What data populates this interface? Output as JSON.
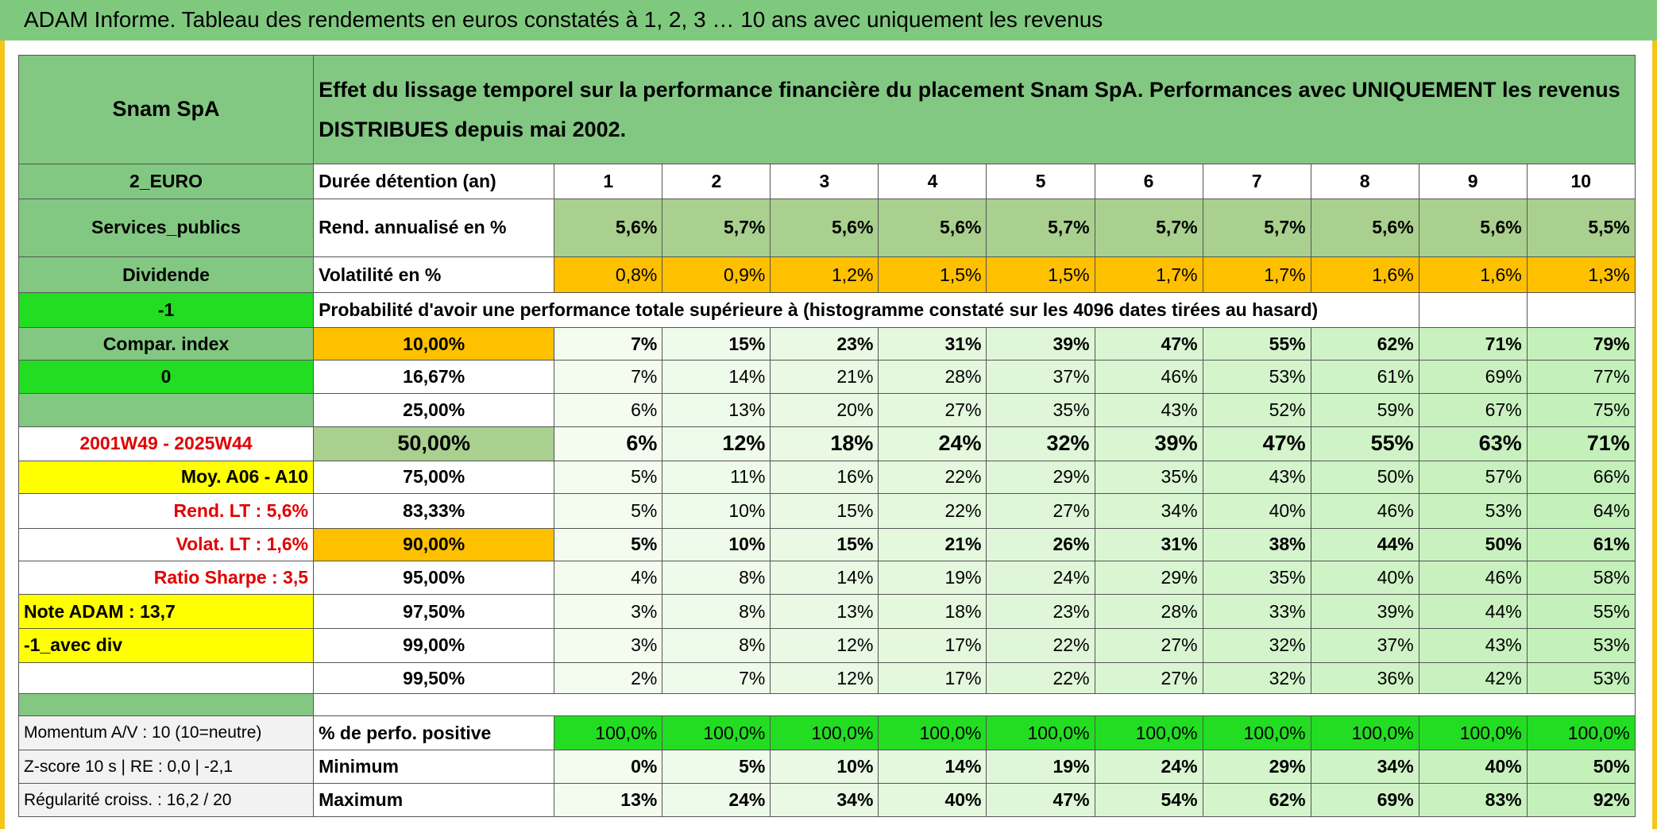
{
  "header": {
    "title": "ADAM Informe. Tableau des rendements en euros constatés à 1, 2, 3 … 10 ans avec uniquement les revenus"
  },
  "table": {
    "name": "Snam SpA",
    "description": "Effet du lissage temporel sur la performance financière du placement Snam SpA. Performances avec UNIQUEMENT les revenus DISTRIBUES depuis mai 2002.",
    "rows": [
      {
        "side": "2_EURO",
        "label": "Durée détention (an)",
        "cells": [
          "1",
          "2",
          "3",
          "4",
          "5",
          "6",
          "7",
          "8",
          "9",
          "10"
        ]
      },
      {
        "side": "Services_publics",
        "label": "Rend. annualisé en %",
        "cells": [
          "5,6%",
          "5,7%",
          "5,6%",
          "5,6%",
          "5,7%",
          "5,7%",
          "5,7%",
          "5,6%",
          "5,6%",
          "5,5%"
        ]
      },
      {
        "side": "Dividende",
        "label": "Volatilité en %",
        "cells": [
          "0,8%",
          "0,9%",
          "1,2%",
          "1,5%",
          "1,5%",
          "1,7%",
          "1,7%",
          "1,6%",
          "1,6%",
          "1,3%"
        ]
      },
      {
        "side": "-1",
        "note": "Probabilité d'avoir une performance totale supérieure à (histogramme constaté sur les 4096 dates tirées au hasard)"
      },
      {
        "side": "Compar. index",
        "label": "10,00%",
        "cells": [
          "7%",
          "15%",
          "23%",
          "31%",
          "39%",
          "47%",
          "55%",
          "62%",
          "71%",
          "79%"
        ]
      },
      {
        "side": "0",
        "label": "16,67%",
        "cells": [
          "7%",
          "14%",
          "21%",
          "28%",
          "37%",
          "46%",
          "53%",
          "61%",
          "69%",
          "77%"
        ]
      },
      {
        "label": "25,00%",
        "cells": [
          "6%",
          "13%",
          "20%",
          "27%",
          "35%",
          "43%",
          "52%",
          "59%",
          "67%",
          "75%"
        ]
      },
      {
        "side": "2001W49 - 2025W44",
        "label": "50,00%",
        "cells": [
          "6%",
          "12%",
          "18%",
          "24%",
          "32%",
          "39%",
          "47%",
          "55%",
          "63%",
          "71%"
        ]
      },
      {
        "side": "Moy. A06 - A10",
        "label": "75,00%",
        "cells": [
          "5%",
          "11%",
          "16%",
          "22%",
          "29%",
          "35%",
          "43%",
          "50%",
          "57%",
          "66%"
        ]
      },
      {
        "side": "Rend. LT :   5,6%",
        "label": "83,33%",
        "cells": [
          "5%",
          "10%",
          "15%",
          "22%",
          "27%",
          "34%",
          "40%",
          "46%",
          "53%",
          "64%"
        ]
      },
      {
        "side": "Volat. LT :   1,6%",
        "label": "90,00%",
        "cells": [
          "5%",
          "10%",
          "15%",
          "21%",
          "26%",
          "31%",
          "38%",
          "44%",
          "50%",
          "61%"
        ]
      },
      {
        "side": "Ratio Sharpe :    3,5",
        "label": "95,00%",
        "cells": [
          "4%",
          "8%",
          "14%",
          "19%",
          "24%",
          "29%",
          "35%",
          "40%",
          "46%",
          "58%"
        ]
      },
      {
        "side": "Note ADAM : 13,7",
        "label": "97,50%",
        "cells": [
          "3%",
          "8%",
          "13%",
          "18%",
          "23%",
          "28%",
          "33%",
          "39%",
          "44%",
          "55%"
        ]
      },
      {
        "side": "-1_avec div",
        "label": "99,00%",
        "cells": [
          "3%",
          "8%",
          "12%",
          "17%",
          "22%",
          "27%",
          "32%",
          "37%",
          "43%",
          "53%"
        ]
      },
      {
        "label": "99,50%",
        "cells": [
          "2%",
          "7%",
          "12%",
          "17%",
          "22%",
          "27%",
          "32%",
          "36%",
          "42%",
          "53%"
        ]
      },
      {
        "side": "Momentum A/V : 10 (10=neutre)",
        "label": "% de perfo. positive",
        "cells": [
          "100,0%",
          "100,0%",
          "100,0%",
          "100,0%",
          "100,0%",
          "100,0%",
          "100,0%",
          "100,0%",
          "100,0%",
          "100,0%"
        ]
      },
      {
        "side": "Z-score 10 s | RE : 0,0 | -2,1",
        "label": "Minimum",
        "cells": [
          "0%",
          "5%",
          "10%",
          "14%",
          "19%",
          "24%",
          "29%",
          "34%",
          "40%",
          "50%"
        ]
      },
      {
        "side": "Régularité croiss. : 16,2 / 20",
        "label": "Maximum",
        "cells": [
          "13%",
          "24%",
          "34%",
          "40%",
          "47%",
          "54%",
          "62%",
          "69%",
          "83%",
          "92%"
        ]
      }
    ]
  }
}
